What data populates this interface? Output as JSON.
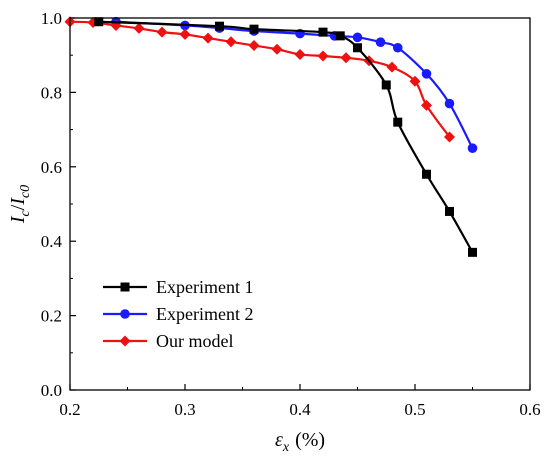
{
  "chart_data": {
    "type": "line",
    "xlabel": {
      "var": "ε",
      "sub": "x",
      "unit": "(%)"
    },
    "ylabel": {
      "i1": "I",
      "s1": "c",
      "mid": "/",
      "i2": "I",
      "s2": "c0"
    },
    "xlim": [
      0.2,
      0.6
    ],
    "ylim": [
      0.0,
      1.0
    ],
    "xticks": [
      0.2,
      0.3,
      0.4,
      0.5,
      0.6
    ],
    "yticks": [
      0.0,
      0.2,
      0.4,
      0.6,
      0.8,
      1.0
    ],
    "xtick_labels": [
      "0.2",
      "0.3",
      "0.4",
      "0.5",
      "0.6"
    ],
    "ytick_labels": [
      "0.0",
      "0.2",
      "0.4",
      "0.6",
      "0.8",
      "1.0"
    ],
    "grid": false,
    "legend_position": "bottom-left",
    "series": [
      {
        "name": "Experiment 1",
        "color": "#000000",
        "marker": "square",
        "x": [
          0.225,
          0.33,
          0.36,
          0.42,
          0.435,
          0.45,
          0.475,
          0.485,
          0.51,
          0.53,
          0.55
        ],
        "y": [
          0.99,
          0.978,
          0.97,
          0.962,
          0.952,
          0.92,
          0.82,
          0.72,
          0.58,
          0.48,
          0.37
        ]
      },
      {
        "name": "Experiment 2",
        "color": "#1a1aff",
        "marker": "circle",
        "x": [
          0.24,
          0.3,
          0.33,
          0.36,
          0.4,
          0.43,
          0.45,
          0.47,
          0.485,
          0.51,
          0.53,
          0.55
        ],
        "y": [
          0.99,
          0.98,
          0.973,
          0.965,
          0.958,
          0.952,
          0.948,
          0.935,
          0.92,
          0.85,
          0.77,
          0.65
        ]
      },
      {
        "name": "Our model",
        "color": "#ee1111",
        "marker": "diamond",
        "x": [
          0.2,
          0.22,
          0.24,
          0.26,
          0.28,
          0.3,
          0.32,
          0.34,
          0.36,
          0.38,
          0.4,
          0.42,
          0.44,
          0.46,
          0.48,
          0.5,
          0.51,
          0.53
        ],
        "y": [
          0.99,
          0.988,
          0.98,
          0.972,
          0.962,
          0.956,
          0.946,
          0.936,
          0.926,
          0.916,
          0.902,
          0.898,
          0.893,
          0.885,
          0.868,
          0.83,
          0.765,
          0.68
        ]
      }
    ]
  }
}
